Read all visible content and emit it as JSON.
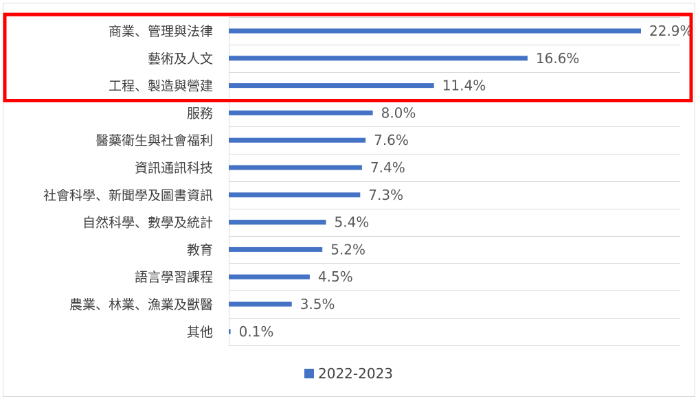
{
  "chart_data": {
    "type": "bar",
    "orientation": "horizontal",
    "categories": [
      "商業、管理與法律",
      "藝術及人文",
      "工程、製造與營建",
      "服務",
      "醫藥衛生與社會福利",
      "資訊通訊科技",
      "社會科學、新聞學及圖書資訊",
      "自然科學、數學及統計",
      "教育",
      "語言學習課程",
      "農業、林業、漁業及獸醫",
      "其他"
    ],
    "series": [
      {
        "name": "2022-2023",
        "values": [
          22.9,
          16.6,
          11.4,
          8.0,
          7.6,
          7.4,
          7.3,
          5.4,
          5.2,
          4.5,
          3.5,
          0.1
        ],
        "labels": [
          "22.9%",
          "16.6%",
          "11.4%",
          "8.0%",
          "7.6%",
          "7.4%",
          "7.3%",
          "5.4%",
          "5.2%",
          "4.5%",
          "3.5%",
          "0.1%"
        ],
        "color": "#4472c4"
      }
    ],
    "xlim": [
      0,
      25
    ],
    "grid": true,
    "legend": "bottom",
    "highlight": {
      "categories": [
        "商業、管理與法律",
        "藝術及人文",
        "工程、製造與營建"
      ],
      "color": "#ff0000"
    },
    "colors": {
      "bar": "#4472c4",
      "grid": "#d9d9d9",
      "highlight": "#ff0000",
      "category_text": "#404040",
      "value_text": "#595959"
    }
  }
}
